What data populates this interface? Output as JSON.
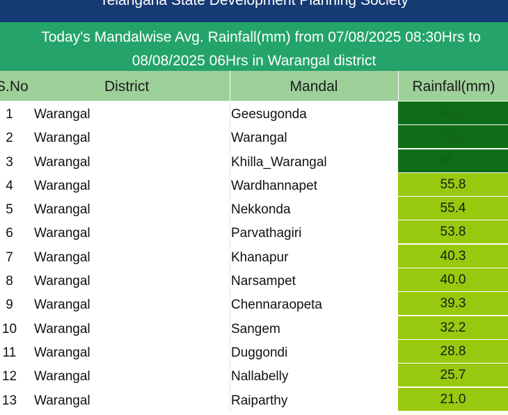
{
  "header_org": "Telangana State Development Planning Society",
  "title_line1": "Today's Mandalwise Avg. Rainfall(mm) from 07/08/2025 08:30Hrs to",
  "title_line2": "08/08/2025 06Hrs in Warangal district",
  "columns": {
    "sno": "S.No",
    "district": "District",
    "mandal": "Mandal",
    "rainfall": "Rainfall(mm)"
  },
  "colors": {
    "topbar": "#163a73",
    "titlebar": "#24a46a",
    "header": "#9ed09a",
    "high_rain": "#0f6d17",
    "moderate_rain": "#97c90f"
  },
  "rows": [
    {
      "sno": "1",
      "district": "Warangal",
      "mandal": "Geesugonda",
      "rainfall": "92.9",
      "level": "dark"
    },
    {
      "sno": "2",
      "district": "Warangal",
      "mandal": "Warangal",
      "rainfall": "70.9",
      "level": "dark"
    },
    {
      "sno": "3",
      "district": "Warangal",
      "mandal": "Khilla_Warangal",
      "rainfall": "65.3",
      "level": "dark"
    },
    {
      "sno": "4",
      "district": "Warangal",
      "mandal": "Wardhannapet",
      "rainfall": "55.8",
      "level": "light"
    },
    {
      "sno": "5",
      "district": "Warangal",
      "mandal": "Nekkonda",
      "rainfall": "55.4",
      "level": "light"
    },
    {
      "sno": "6",
      "district": "Warangal",
      "mandal": "Parvathagiri",
      "rainfall": "53.8",
      "level": "light"
    },
    {
      "sno": "7",
      "district": "Warangal",
      "mandal": "Khanapur",
      "rainfall": "40.3",
      "level": "light"
    },
    {
      "sno": "8",
      "district": "Warangal",
      "mandal": "Narsampet",
      "rainfall": "40.0",
      "level": "light"
    },
    {
      "sno": "9",
      "district": "Warangal",
      "mandal": "Chennaraopeta",
      "rainfall": "39.3",
      "level": "light"
    },
    {
      "sno": "10",
      "district": "Warangal",
      "mandal": "Sangem",
      "rainfall": "32.2",
      "level": "light"
    },
    {
      "sno": "11",
      "district": "Warangal",
      "mandal": "Duggondi",
      "rainfall": "28.8",
      "level": "light"
    },
    {
      "sno": "12",
      "district": "Warangal",
      "mandal": "Nallabelly",
      "rainfall": "25.7",
      "level": "light"
    },
    {
      "sno": "13",
      "district": "Warangal",
      "mandal": "Raiparthy",
      "rainfall": "21.0",
      "level": "light"
    }
  ]
}
